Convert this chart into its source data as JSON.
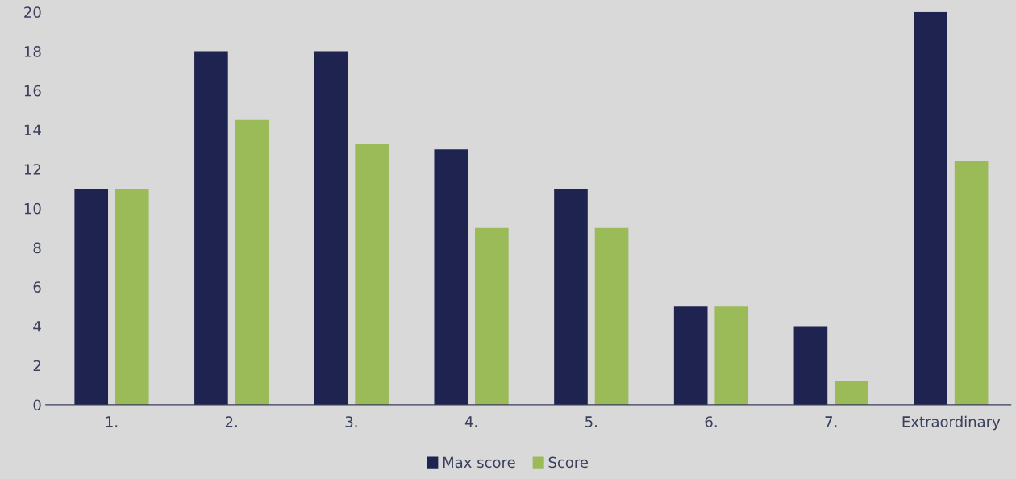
{
  "chart_data": {
    "type": "bar",
    "categories": [
      "1.",
      "2.",
      "3.",
      "4.",
      "5.",
      "6.",
      "7.",
      "Extraordinary"
    ],
    "series": [
      {
        "name": "Max score",
        "color": "#1f2350",
        "values": [
          11,
          18,
          18,
          13,
          11,
          5,
          4,
          20
        ]
      },
      {
        "name": "Score",
        "color": "#9bbb59",
        "values": [
          11,
          14.5,
          13.3,
          9,
          9,
          5,
          1.2,
          12.4
        ]
      }
    ],
    "ylim": [
      0,
      20
    ],
    "yticks": [
      0,
      2,
      4,
      6,
      8,
      10,
      12,
      14,
      16,
      18,
      20
    ],
    "grid": false,
    "legend": "bottom"
  }
}
